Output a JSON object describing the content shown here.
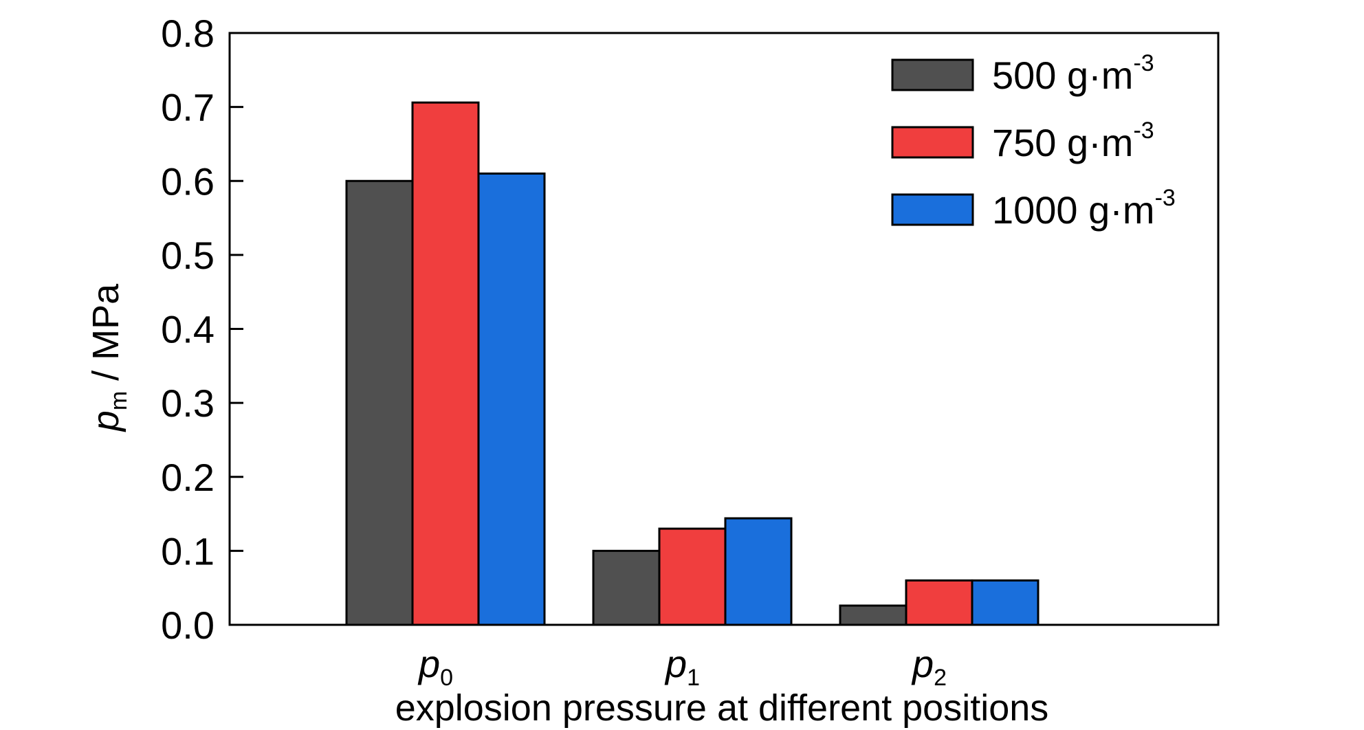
{
  "chart_data": {
    "type": "bar",
    "categories": [
      "p0",
      "p1",
      "p2"
    ],
    "category_labels": [
      {
        "main": "p",
        "sub": "0"
      },
      {
        "main": "p",
        "sub": "1"
      },
      {
        "main": "p",
        "sub": "2"
      }
    ],
    "series": [
      {
        "name": "500 g·m-3",
        "label_main": "500 g·m",
        "label_sup": "-3",
        "color": "#505050",
        "values": [
          0.6,
          0.1,
          0.026
        ]
      },
      {
        "name": "750 g·m-3",
        "label_main": "750 g·m",
        "label_sup": "-3",
        "color": "#f03e3e",
        "values": [
          0.706,
          0.13,
          0.06
        ]
      },
      {
        "name": "1000 g·m-3",
        "label_main": "1000 g·m",
        "label_sup": "-3",
        "color": "#1a6fdc",
        "values": [
          0.61,
          0.144,
          0.06
        ]
      }
    ],
    "xlabel": "explosion pressure at different positions",
    "ylabel": {
      "main": "p",
      "sub": "m",
      "rest": " / MPa"
    },
    "ylim": [
      0,
      0.8
    ],
    "yticks": [
      "0.0",
      "0.1",
      "0.2",
      "0.3",
      "0.4",
      "0.5",
      "0.6",
      "0.7",
      "0.8"
    ],
    "legend_position": "top-right",
    "grid": false
  }
}
